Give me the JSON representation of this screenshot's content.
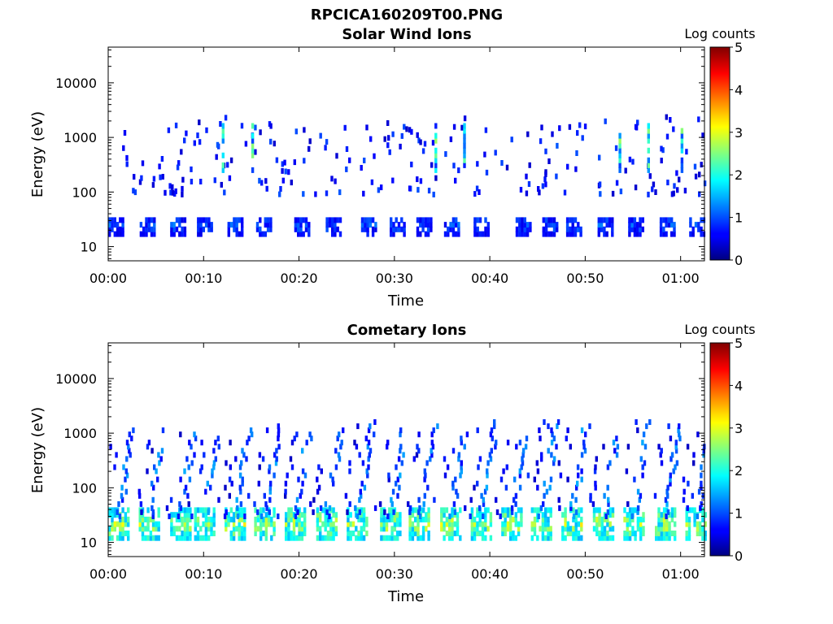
{
  "figure": {
    "title": "RPCICA160209T00.PNG"
  },
  "chart_data": [
    {
      "type": "heatmap",
      "title": "Solar Wind Ions",
      "xlabel": "Time",
      "ylabel": "Energy (eV)",
      "xlim": [
        "00:00",
        "01:02:30"
      ],
      "ylim": [
        5.5,
        45000
      ],
      "yscale": "log",
      "xticks": [
        "00:00",
        "00:10",
        "00:20",
        "00:30",
        "00:40",
        "00:50",
        "01:00"
      ],
      "yticks": [
        10,
        100,
        1000,
        10000
      ],
      "ytick_labels": [
        "10",
        "100",
        "1000",
        "10000"
      ],
      "colorbar": {
        "label": "Log counts",
        "range": [
          0,
          5
        ],
        "ticks": [
          "0",
          "1",
          "2",
          "3",
          "4",
          "5"
        ],
        "colormap": "jet"
      },
      "background": "#ffffff",
      "low_band": {
        "energy_range_eV": [
          17,
          36
        ],
        "burst_start_minutes": [
          0.0,
          3.3,
          6.5,
          9.3,
          12.5,
          15.5,
          19.5,
          22.8,
          26.5,
          29.5,
          32.3,
          35.2,
          38.3,
          42.7,
          45.5,
          48.0,
          51.3,
          54.5,
          57.8,
          60.9
        ],
        "burst_width_minutes": 1.5,
        "typical_log_counts": 0.5,
        "peak_log_counts": 1.3
      },
      "scattered_counts": {
        "energy_range_eV": [
          90,
          2400
        ],
        "typical_log_counts": 0.7,
        "peak_log_counts": 2.7,
        "spike_minutes": [
          11.9,
          15.0,
          34.2,
          37.2,
          53.5,
          56.5,
          60.0
        ]
      }
    },
    {
      "type": "heatmap",
      "title": "Cometary Ions",
      "xlabel": "Time",
      "ylabel": "Energy (eV)",
      "xlim": [
        "00:00",
        "01:02:30"
      ],
      "ylim": [
        5.5,
        45000
      ],
      "yscale": "log",
      "xticks": [
        "00:00",
        "00:10",
        "00:20",
        "00:30",
        "00:40",
        "00:50",
        "01:00"
      ],
      "yticks": [
        10,
        100,
        1000,
        10000
      ],
      "ytick_labels": [
        "10",
        "100",
        "1000",
        "10000"
      ],
      "colorbar": {
        "label": "Log counts",
        "range": [
          0,
          5
        ],
        "ticks": [
          "0",
          "1",
          "2",
          "3",
          "4",
          "5"
        ],
        "colormap": "jet"
      },
      "background": "#ffffff",
      "low_band": {
        "energy_range_eV": [
          12,
          40
        ],
        "burst_start_minutes": [
          0.0,
          3.2,
          6.5,
          9.0,
          12.2,
          15.3,
          18.5,
          21.8,
          25.0,
          28.5,
          31.5,
          34.8,
          38.0,
          41.2,
          44.3,
          47.5,
          50.8,
          54.0,
          57.3,
          60.5
        ],
        "burst_width_minutes": 2.0,
        "typical_log_counts": 1.5,
        "peak_log_counts": 3.3
      },
      "dispersed_streaks": {
        "energy_range_eV": [
          30,
          1800
        ],
        "typical_log_counts": 0.6,
        "peak_log_counts": 1.5
      }
    }
  ]
}
